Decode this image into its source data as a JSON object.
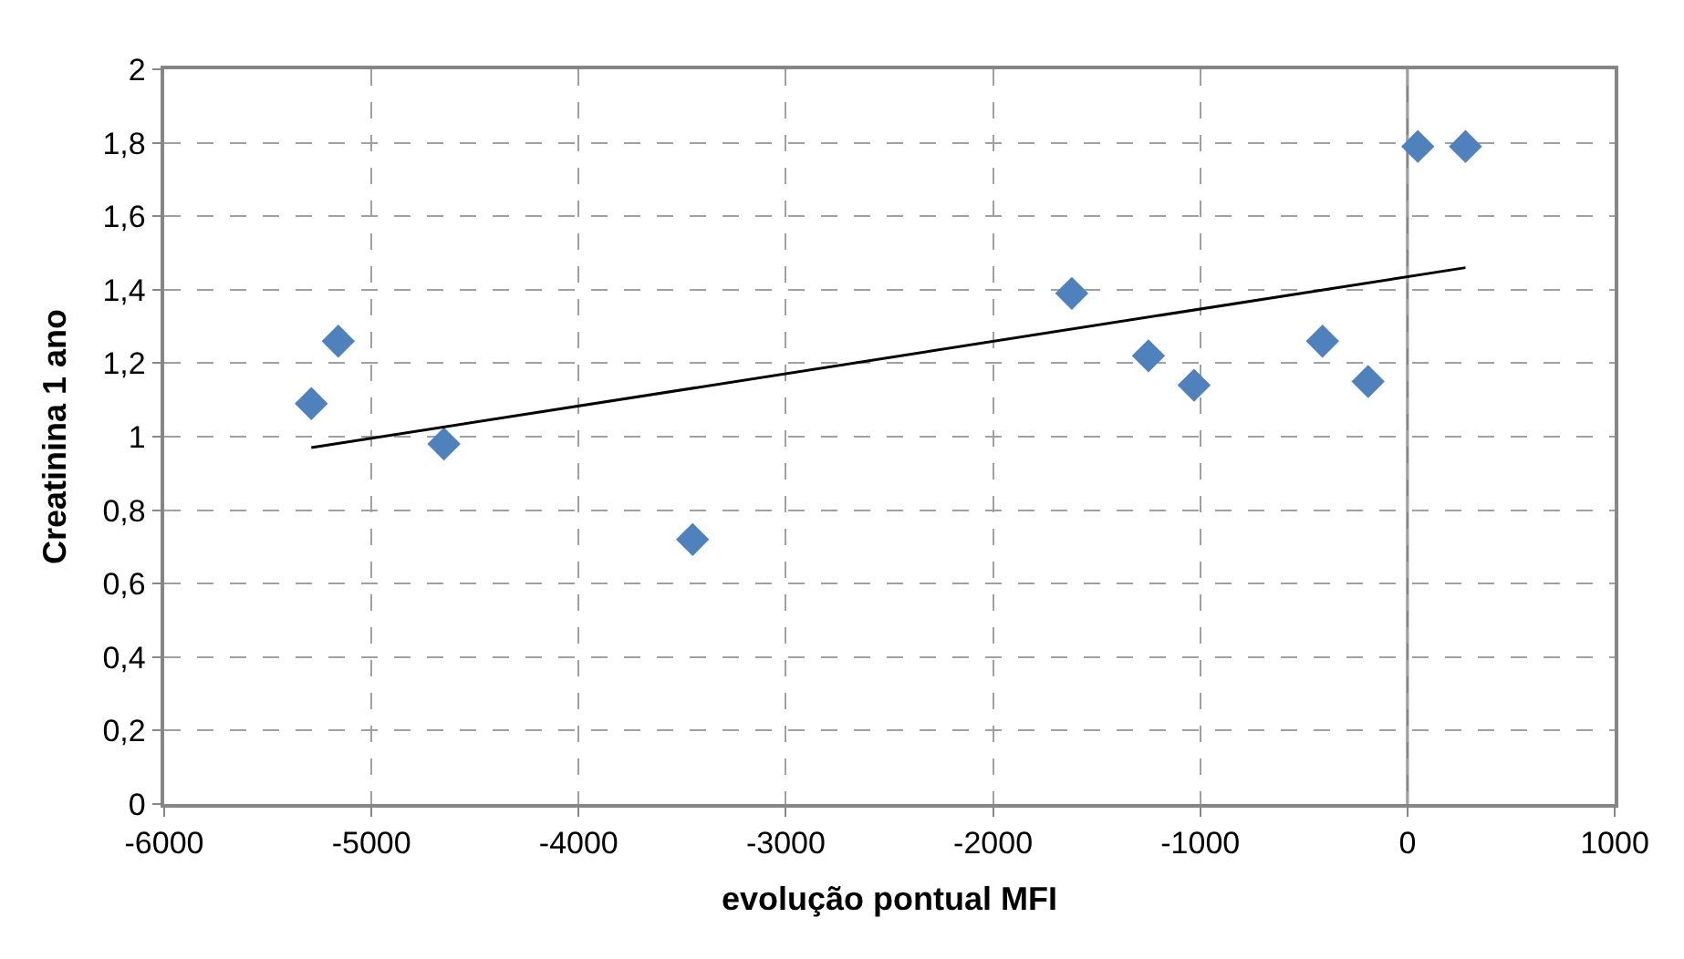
{
  "chart_data": {
    "type": "scatter",
    "xlabel": "evolução pontual MFI",
    "ylabel": "Creatinina 1 ano",
    "xlim": [
      -6000,
      1000
    ],
    "xticks": [
      -6000,
      -5000,
      -4000,
      -3000,
      -2000,
      -1000,
      0,
      1000
    ],
    "ylim": [
      0,
      2
    ],
    "yticks": [
      0,
      {
        "value": 0.2,
        "label": "0,2"
      },
      {
        "value": 0.4,
        "label": "0,4"
      },
      {
        "value": 0.6,
        "label": "0,6"
      },
      {
        "value": 0.8,
        "label": "0,8"
      },
      1,
      {
        "value": 1.2,
        "label": "1,2"
      },
      {
        "value": 1.4,
        "label": "1,4"
      },
      {
        "value": 1.6,
        "label": "1,6"
      },
      {
        "value": 1.8,
        "label": "1,8"
      },
      2
    ],
    "grid": true,
    "legend": false,
    "marker": "diamond",
    "ref_lines": [
      {
        "axis": "x",
        "value": 0,
        "color": "#868686",
        "line_style": "solid"
      }
    ],
    "series": [
      {
        "color": "#4f81bd",
        "x": [
          -5290,
          -5160,
          -4650,
          -3450,
          -1620,
          -1250,
          -1030,
          -410,
          -190,
          50,
          280
        ],
        "values": [
          1.09,
          1.26,
          0.98,
          0.72,
          1.39,
          1.22,
          1.14,
          1.26,
          1.15,
          1.79,
          1.79
        ]
      },
      {
        "type": "line",
        "color": "#000000",
        "x": [
          -5290,
          280
        ],
        "values": [
          0.97,
          1.46
        ],
        "marker": "none",
        "line_style": "solid"
      }
    ]
  }
}
